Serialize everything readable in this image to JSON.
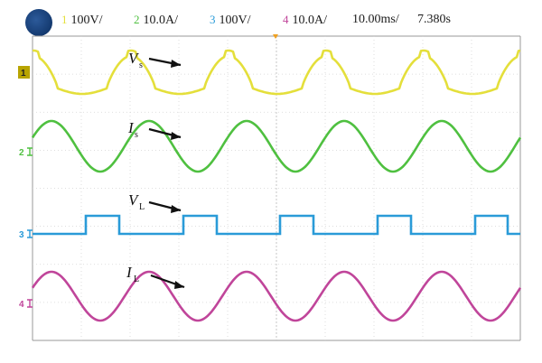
{
  "status": {
    "channels": [
      {
        "num": "1",
        "scale": "100V/",
        "color": "#e4df3b"
      },
      {
        "num": "2",
        "scale": "10.0A/",
        "color": "#4fc040"
      },
      {
        "num": "3",
        "scale": "100V/",
        "color": "#2a9bd8"
      },
      {
        "num": "4",
        "scale": "10.0A/",
        "color": "#c0459a"
      }
    ],
    "timebase": "10.00ms/",
    "trigger_time": "7.380s"
  },
  "waveforms": {
    "ch1": {
      "label": "V",
      "sub": "s"
    },
    "ch2": {
      "label": "I",
      "sub": "s"
    },
    "ch3": {
      "label": "V",
      "sub": "L"
    },
    "ch4": {
      "label": "I",
      "sub": "L"
    }
  },
  "markers": {
    "ch1": "1",
    "ch2": "2",
    "ch3": "3",
    "ch4": "4"
  },
  "colors": {
    "ch1": "#e4df3b",
    "ch2": "#4fc040",
    "ch3": "#2a9bd8",
    "ch4": "#c0459a",
    "grid": "#cfcfcf",
    "trigger": "#f0a020"
  }
}
